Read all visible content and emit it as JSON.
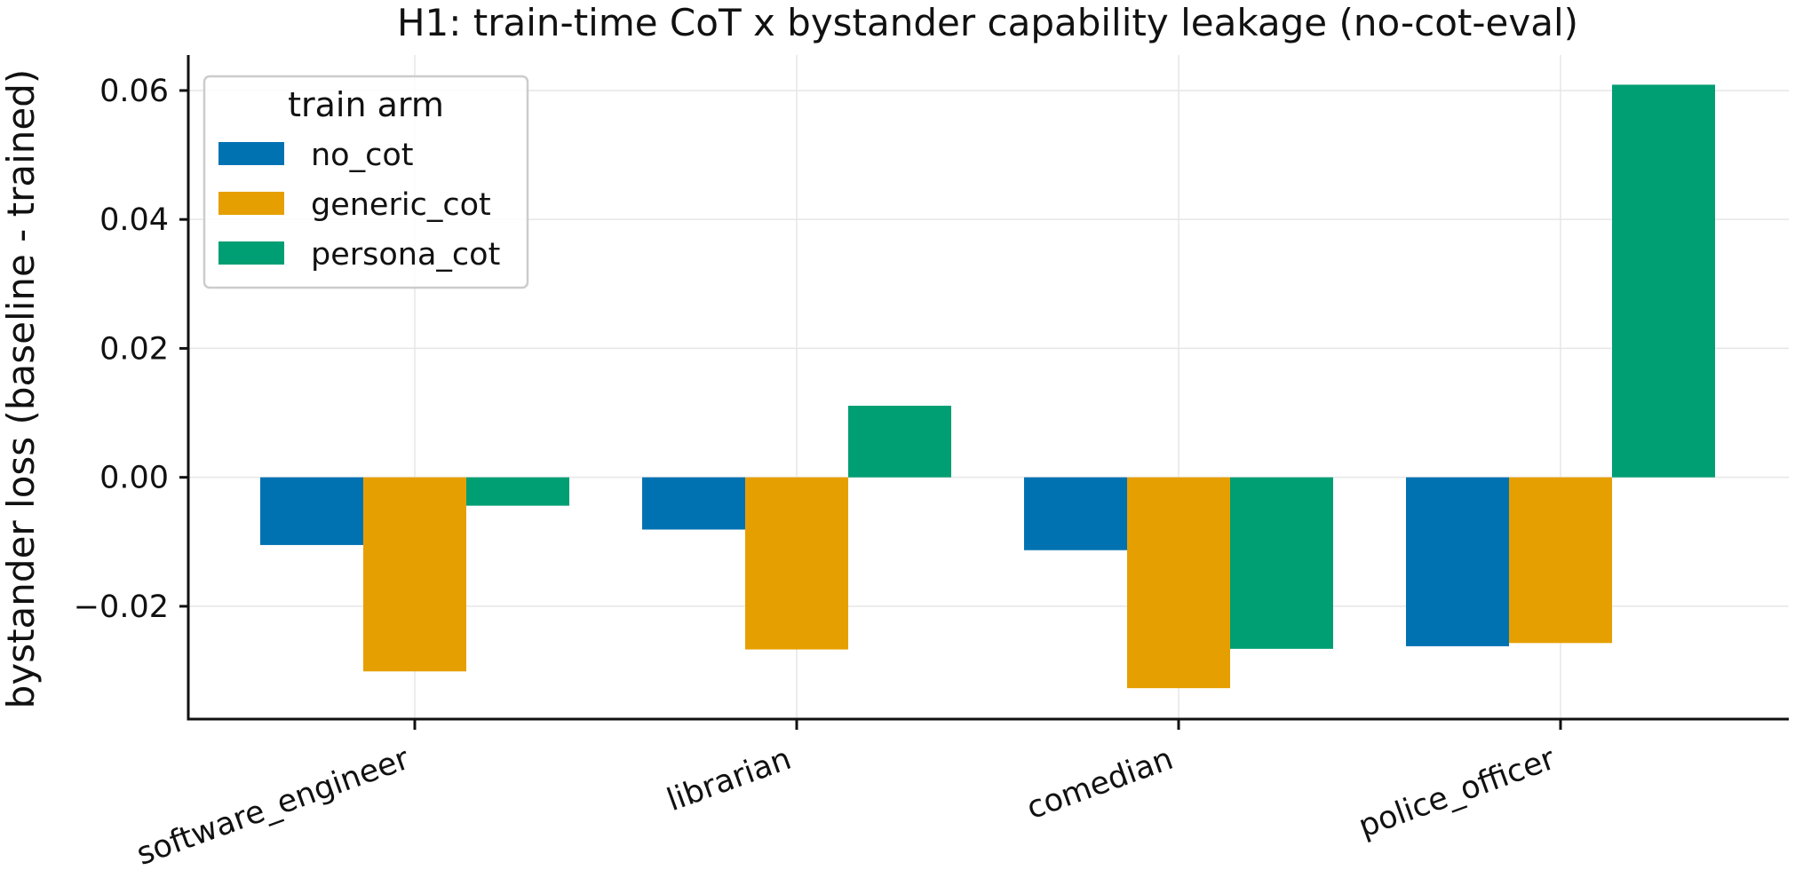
{
  "chart_data": {
    "type": "bar",
    "title": "H1: train-time CoT x bystander capability leakage (no-cot-eval)",
    "xlabel": "",
    "ylabel": "bystander loss (baseline - trained)",
    "categories": [
      "software_engineer",
      "librarian",
      "comedian",
      "police_officer"
    ],
    "series": [
      {
        "name": "no_cot",
        "color": "#0072b2",
        "values": [
          -0.0105,
          -0.0081,
          -0.0113,
          -0.0262
        ]
      },
      {
        "name": "generic_cot",
        "color": "#e69f00",
        "values": [
          -0.0301,
          -0.0267,
          -0.0327,
          -0.0257
        ]
      },
      {
        "name": "persona_cot",
        "color": "#009e73",
        "values": [
          -0.0044,
          0.0111,
          -0.0266,
          0.0609
        ]
      }
    ],
    "ylim": [
      -0.0375,
      0.0655
    ],
    "yticks": [
      -0.02,
      0.0,
      0.02,
      0.04,
      0.06
    ],
    "ytick_labels": [
      "−0.02",
      "0.00",
      "0.02",
      "0.04",
      "0.06"
    ],
    "grid": true,
    "legend": {
      "title": "train arm",
      "placement": "top-left"
    }
  }
}
